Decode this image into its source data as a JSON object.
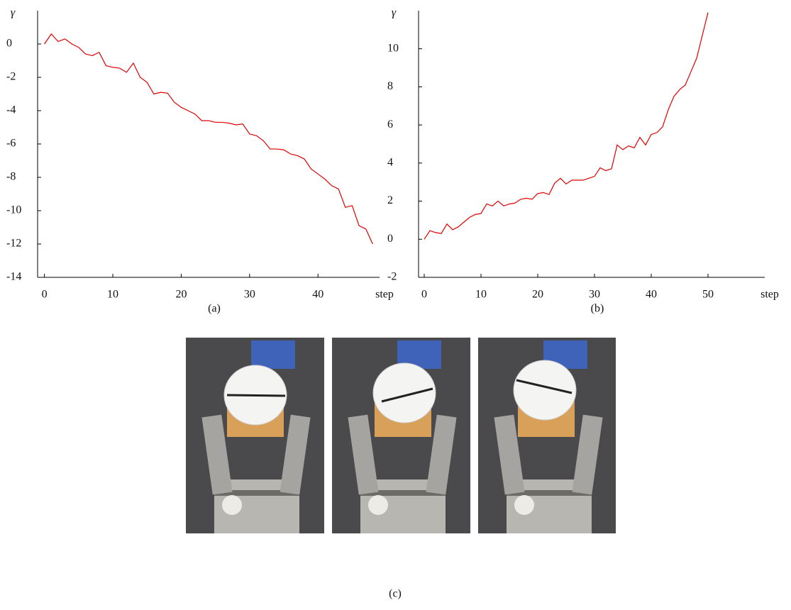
{
  "chart_data": [
    {
      "type": "line",
      "caption": "(a)",
      "xlabel": "step",
      "ylabel": "γ",
      "x": [
        0,
        1,
        2,
        3,
        4,
        5,
        6,
        7,
        8,
        9,
        10,
        11,
        12,
        13,
        14,
        15,
        16,
        17,
        18,
        19,
        20,
        21,
        22,
        23,
        24,
        25,
        26,
        27,
        28,
        29,
        30,
        31,
        32,
        33,
        34,
        35,
        36,
        37,
        38,
        39,
        40,
        41,
        42,
        43,
        44,
        45,
        46,
        47,
        48
      ],
      "series": [
        {
          "color": "#e00000",
          "values": [
            0,
            0.6,
            0.15,
            0.3,
            0,
            -0.2,
            -0.6,
            -0.7,
            -0.5,
            -1.3,
            -1.4,
            -1.45,
            -1.7,
            -1.15,
            -2,
            -2.3,
            -3,
            -2.9,
            -2.95,
            -3.5,
            -3.8,
            -4,
            -4.2,
            -4.6,
            -4.6,
            -4.7,
            -4.7,
            -4.75,
            -4.85,
            -4.8,
            -5.4,
            -5.5,
            -5.8,
            -6.3,
            -6.3,
            -6.35,
            -6.6,
            -6.7,
            -6.9,
            -7.5,
            -7.8,
            -8.1,
            -8.5,
            -8.7,
            -9.8,
            -9.7,
            -10.9,
            -11.1,
            -12
          ]
        }
      ],
      "xlim": [
        -1,
        49
      ],
      "ylim": [
        -14,
        2
      ],
      "xticks": [
        0,
        10,
        20,
        30,
        40
      ],
      "yticks": [
        0,
        -2,
        -4,
        -6,
        -8,
        -10,
        -12,
        -14
      ]
    },
    {
      "type": "line",
      "caption": "(b)",
      "xlabel": "step",
      "ylabel": "γ",
      "x": [
        0,
        1,
        2,
        3,
        4,
        5,
        6,
        7,
        8,
        9,
        10,
        11,
        12,
        13,
        14,
        15,
        16,
        17,
        18,
        19,
        20,
        21,
        22,
        23,
        24,
        25,
        26,
        27,
        28,
        29,
        30,
        31,
        32,
        33,
        34,
        35,
        36,
        37,
        38,
        39,
        40,
        41,
        42,
        43,
        44,
        45,
        46,
        47,
        48,
        49,
        50
      ],
      "series": [
        {
          "color": "#e00000",
          "values": [
            0,
            0.45,
            0.35,
            0.3,
            0.8,
            0.5,
            0.65,
            0.9,
            1.15,
            1.3,
            1.35,
            1.85,
            1.75,
            2,
            1.75,
            1.85,
            1.9,
            2.1,
            2.15,
            2.1,
            2.4,
            2.45,
            2.35,
            2.95,
            3.2,
            2.9,
            3.1,
            3.1,
            3.1,
            3.2,
            3.3,
            3.75,
            3.6,
            3.7,
            4.95,
            4.7,
            4.9,
            4.8,
            5.35,
            4.95,
            5.5,
            5.6,
            5.9,
            6.8,
            7.5,
            7.85,
            8.1,
            8.8,
            9.5,
            10.7,
            11.9
          ]
        }
      ],
      "xlim": [
        -1,
        60
      ],
      "ylim": [
        -2,
        12
      ],
      "xticks": [
        0,
        10,
        20,
        30,
        40,
        50
      ],
      "yticks": [
        -2,
        0,
        2,
        4,
        6,
        8,
        10
      ]
    }
  ],
  "figure_caption": "(c)"
}
